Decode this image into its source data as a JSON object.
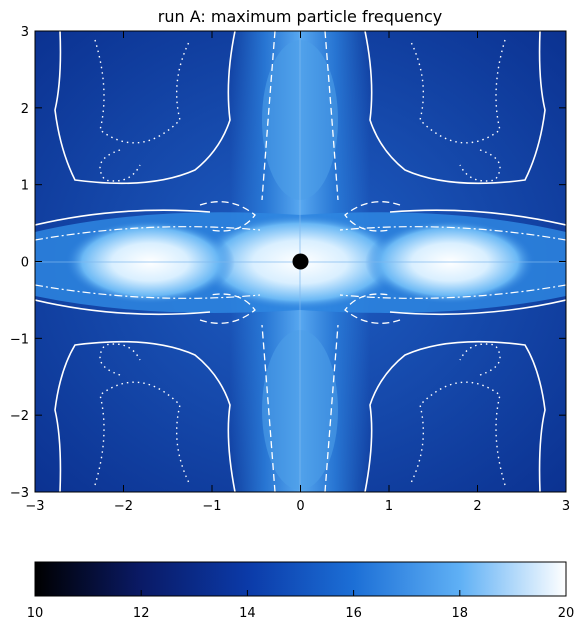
{
  "chart_data": {
    "type": "heatmap",
    "title": "run A: maximum particle frequency",
    "xlabel": "",
    "ylabel": "",
    "xlim": [
      -3,
      3
    ],
    "ylim": [
      -3,
      3
    ],
    "x_ticks": [
      "-3",
      "-2",
      "-1",
      "0",
      "1",
      "2",
      "3"
    ],
    "y_ticks": [
      "-3",
      "-2",
      "-1",
      "0",
      "1",
      "2",
      "3"
    ],
    "x_tick_values": [
      -3,
      -2,
      -1,
      0,
      1,
      2,
      3
    ],
    "y_tick_values": [
      -3,
      -2,
      -1,
      0,
      1,
      2,
      3
    ],
    "colorbar": {
      "range": [
        10,
        20
      ],
      "tick_labels": [
        "10",
        "12",
        "14",
        "16",
        "18",
        "20"
      ],
      "tick_values": [
        10,
        12,
        14,
        16,
        18,
        20
      ],
      "colors": [
        "#000000",
        "#0a1a66",
        "#0b3aa8",
        "#1c6fd6",
        "#5fb0f5",
        "#ffffff"
      ]
    },
    "central_object": {
      "x": 0,
      "y": 0,
      "color": "#000000"
    },
    "colors": {
      "background_field": "#0b3aa8",
      "jet_field": "#2e86e0",
      "core_field": "#e6f4ff",
      "contours": "#ffffff"
    },
    "contour_styles": [
      "solid",
      "dotted",
      "dashed",
      "dash-dot"
    ]
  }
}
